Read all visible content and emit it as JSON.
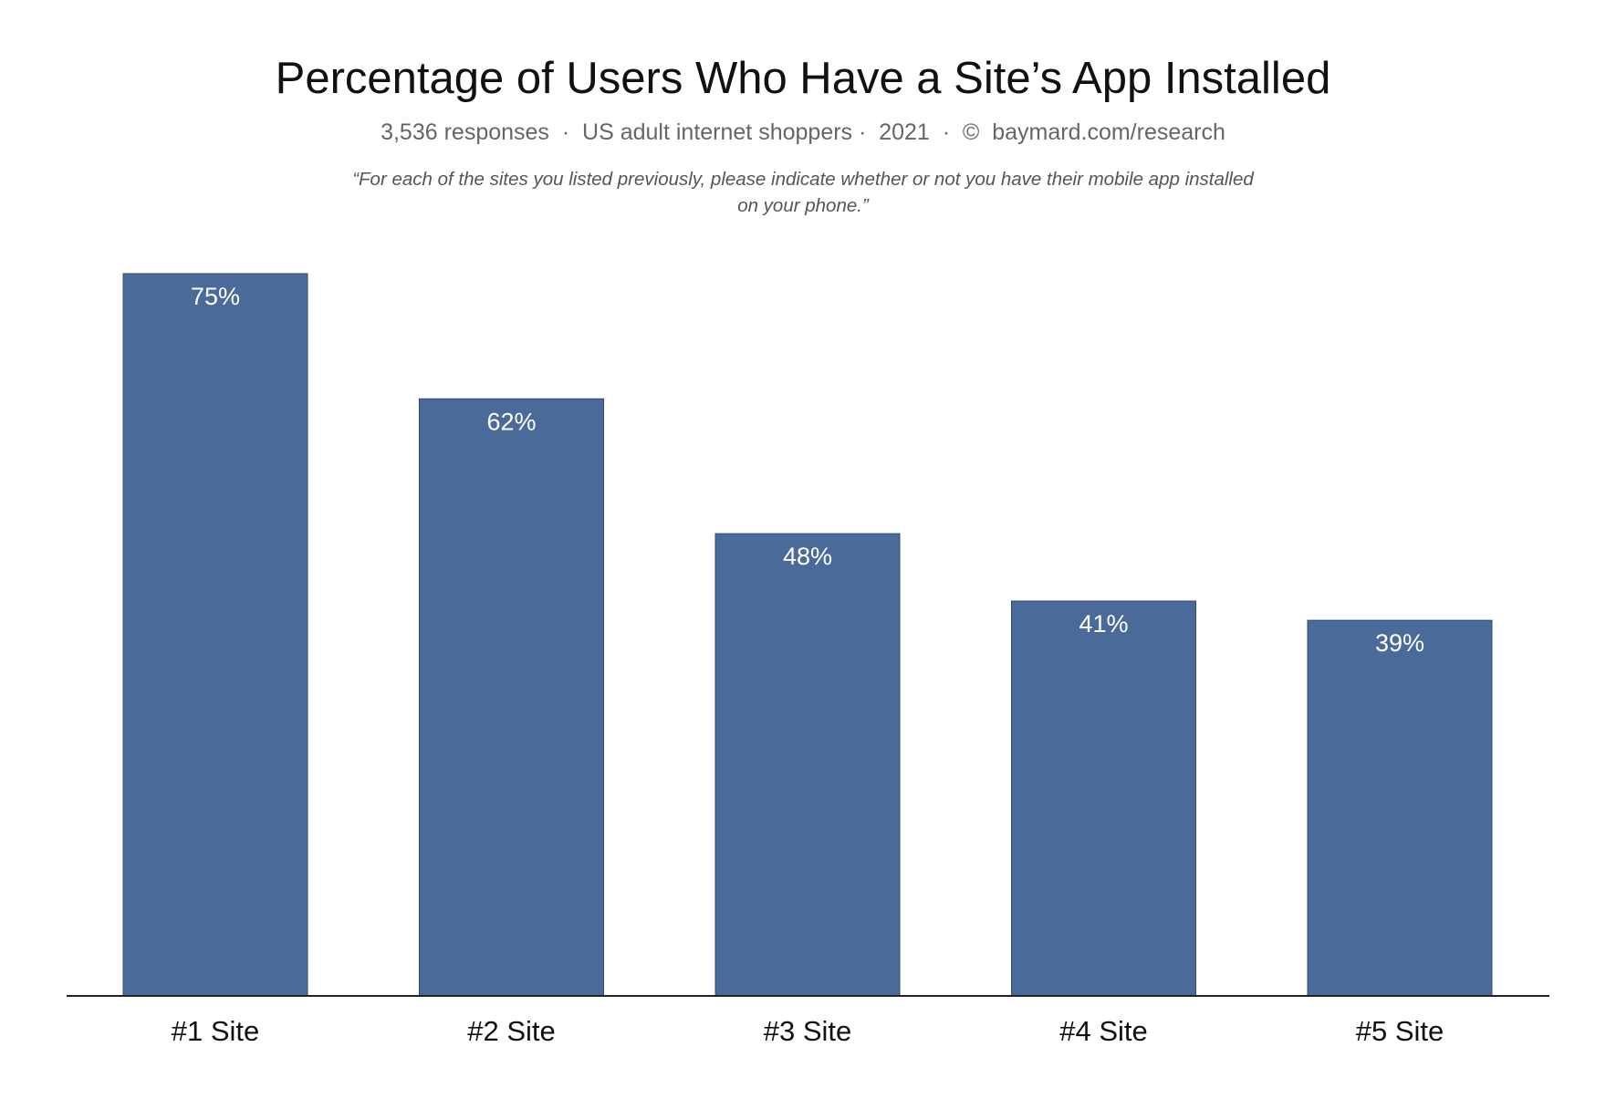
{
  "chart_data": {
    "type": "bar",
    "title": "Percentage of Users Who Have a Site’s App Installed",
    "subtitle": "3,536 responses  ·  US adult internet shoppers ·  2021  ·  ©  baymard.com/research",
    "question": "“For each of the sites you listed previously, please indicate whether or not you have their mobile app installed on your phone.”",
    "categories": [
      "#1 Site",
      "#2 Site",
      "#3 Site",
      "#4 Site",
      "#5 Site"
    ],
    "values": [
      75,
      62,
      48,
      41,
      39
    ],
    "value_labels": [
      "75%",
      "62%",
      "48%",
      "41%",
      "39%"
    ],
    "xlabel": "",
    "ylabel": "",
    "ylim": [
      0,
      100
    ],
    "grid": false,
    "bar_color": "#4a6b99"
  }
}
